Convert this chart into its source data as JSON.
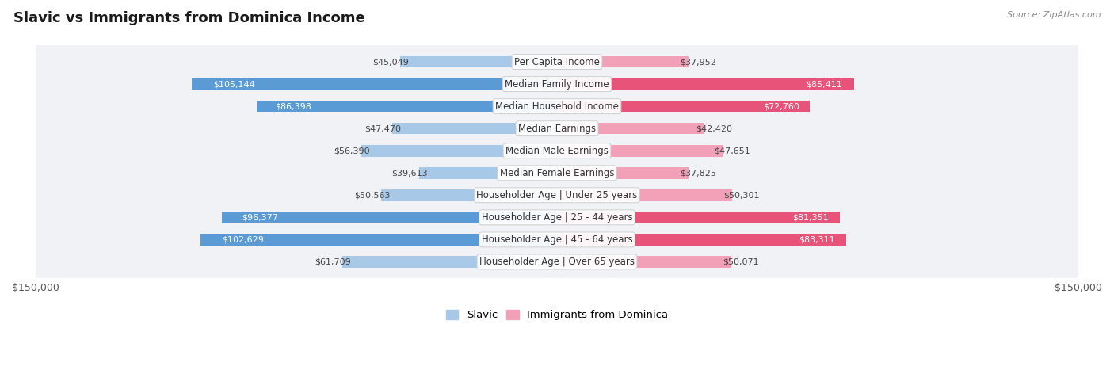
{
  "title": "Slavic vs Immigrants from Dominica Income",
  "source": "Source: ZipAtlas.com",
  "categories": [
    "Per Capita Income",
    "Median Family Income",
    "Median Household Income",
    "Median Earnings",
    "Median Male Earnings",
    "Median Female Earnings",
    "Householder Age | Under 25 years",
    "Householder Age | 25 - 44 years",
    "Householder Age | 45 - 64 years",
    "Householder Age | Over 65 years"
  ],
  "slavic_values": [
    45049,
    105144,
    86398,
    47470,
    56390,
    39613,
    50563,
    96377,
    102629,
    61709
  ],
  "dominica_values": [
    37952,
    85411,
    72760,
    42420,
    47651,
    37825,
    50301,
    81351,
    83311,
    50071
  ],
  "slavic_labels": [
    "$45,049",
    "$105,144",
    "$86,398",
    "$47,470",
    "$56,390",
    "$39,613",
    "$50,563",
    "$96,377",
    "$102,629",
    "$61,709"
  ],
  "dominica_labels": [
    "$37,952",
    "$85,411",
    "$72,760",
    "$42,420",
    "$47,651",
    "$37,825",
    "$50,301",
    "$81,351",
    "$83,311",
    "$50,071"
  ],
  "slavic_color_light": "#a8c8e8",
  "slavic_color_dark": "#5b9bd5",
  "dominica_color_light": "#f2a0b8",
  "dominica_color_dark": "#e8537a",
  "slavic_dark_indices": [
    1,
    2,
    7,
    8
  ],
  "dominica_dark_indices": [
    1,
    2,
    7,
    8
  ],
  "max_value": 150000,
  "bg_color": "#ffffff",
  "row_bg_color": "#f0f2f5",
  "row_border_color": "#d8dce3",
  "x_tick_label": "$150,000",
  "legend_slavic": "Slavic",
  "legend_dominica": "Immigrants from Dominica",
  "title_fontsize": 13,
  "label_fontsize": 8.5,
  "value_fontsize": 8.0,
  "tick_fontsize": 9
}
